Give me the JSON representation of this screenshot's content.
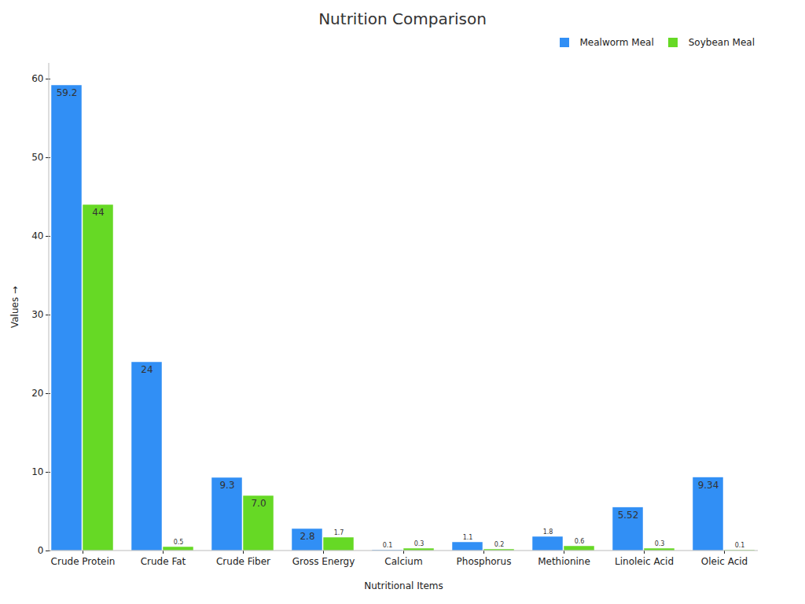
{
  "chart_data": {
    "type": "bar",
    "title": "Nutrition Comparison",
    "x_label": "Nutritional Items",
    "y_label": "Values",
    "categories": [
      "Crude Protein",
      "Crude Fat",
      "Crude Fiber",
      "Gross Energy",
      "Calcium",
      "Phosphorus",
      "Methionine",
      "Linoleic Acid",
      "Oleic Acid"
    ],
    "series": [
      {
        "name": "Mealworm Meal",
        "color": "#318ff5",
        "values": [
          59.2,
          24,
          9.3,
          2.8,
          0.1,
          1.1,
          1.8,
          5.52,
          9.34
        ],
        "value_labels": [
          "59.2",
          "24",
          "9.3",
          "2.8",
          "0.1",
          "1.1",
          "1.8",
          "5.52",
          "9.34"
        ]
      },
      {
        "name": "Soybean Meal",
        "color": "#66d925",
        "values": [
          44,
          0.5,
          7.0,
          1.7,
          0.3,
          0.2,
          0.6,
          0.3,
          0.1
        ],
        "value_labels": [
          "44",
          "0.5",
          "7.0",
          "1.7",
          "0.3",
          "0.2",
          "0.6",
          "0.3",
          "0.1"
        ]
      }
    ],
    "ylim": [
      0,
      62
    ],
    "yticks": [
      0,
      10,
      20,
      30,
      40,
      50,
      60
    ],
    "grid": false,
    "legend": "top-right",
    "data_labels": true
  }
}
